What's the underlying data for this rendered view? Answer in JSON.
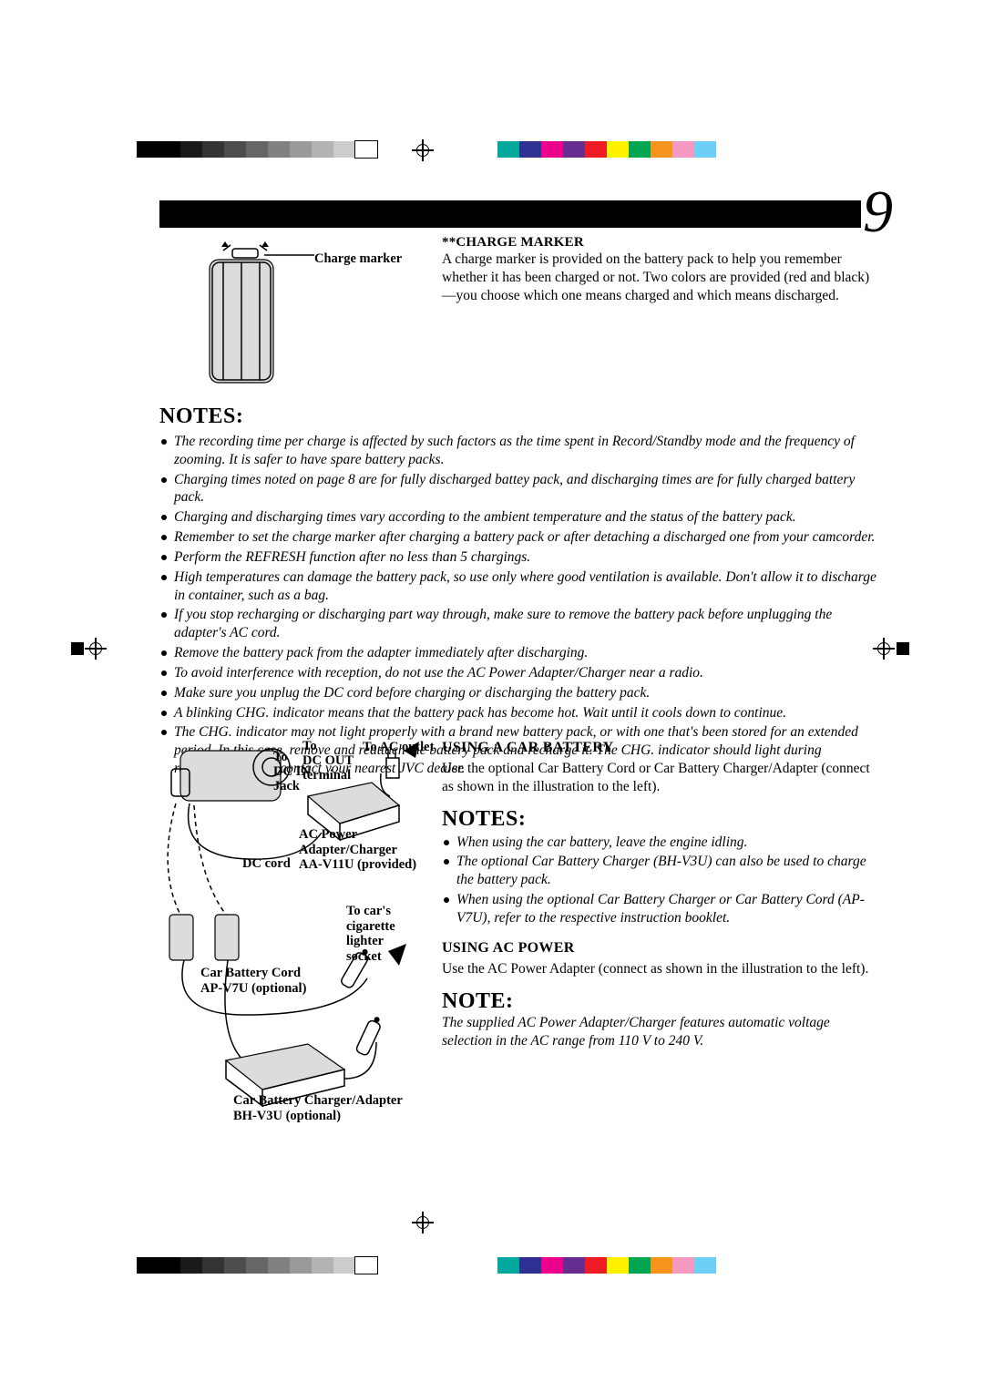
{
  "page_number": "9",
  "colorbars": {
    "grayscale": [
      "#000000",
      "#000000",
      "#1a1a1a",
      "#333333",
      "#4d4d4d",
      "#666666",
      "#808080",
      "#999999",
      "#b3b3b3",
      "#cccccc",
      "#ffffff"
    ],
    "process": [
      "#00a99d",
      "#2e3192",
      "#ec008c",
      "#662d91",
      "#ed1c24",
      "#fff200",
      "#00a651",
      "#f7941d",
      "#f49ac1",
      "#6dcff6"
    ]
  },
  "charge_marker": {
    "heading": "**CHARGE MARKER",
    "label": "Charge marker",
    "body": "A charge marker is provided on the battery pack to help you remember whether it has been charged or not. Two colors are provided (red and black)—you choose which one means charged and which means discharged."
  },
  "notes_main": {
    "heading": "NOTES:",
    "items": [
      "The recording time per charge is affected by such factors as the time spent in Record/Standby mode and the frequency of zooming. It is safer to have spare battery packs.",
      "Charging times noted on page 8 are for fully discharged battey pack, and discharging times are for fully charged battery pack.",
      "Charging and discharging times vary according to the ambient temperature and the status of the battery pack.",
      "Remember to set the charge marker after charging a battery pack or after detaching a discharged one from your camcorder.",
      "Perform the REFRESH function after no less than 5 chargings.",
      "High temperatures can damage the battery pack, so use only where good ventilation is available. Don't allow it to discharge in container, such as a bag.",
      "If you stop recharging or discharging part way through, make sure to remove the battery pack before unplugging the adapter's AC cord.",
      "Remove the battery pack from the adapter immediately after discharging.",
      "To avoid interference with reception, do not use the AC Power Adapter/Charger near a radio.",
      "Make sure you unplug the DC cord before charging or discharging the battery pack.",
      "A blinking CHG. indicator means that the battery pack has become hot. Wait until it cools down to continue.",
      "The CHG. indicator may not light properly with a brand new battery pack, or with one that's been stored for an extended period. In this case, remove and reattach the battery pack and recharge it. The CHG. indicator should light during recharging. If not, contact your nearest JVC dealer."
    ]
  },
  "car_battery": {
    "heading": "USING A CAR BATTERY",
    "body": "Use the optional Car Battery Cord or Car Battery Charger/Adapter (connect as shown in the illustration to the left).",
    "notes_heading": "NOTES:",
    "notes": [
      "When using the car battery, leave the engine idling.",
      "The optional Car Battery Charger (BH-V3U) can also be used to charge the battery pack.",
      "When using the optional Car Battery Charger or Car Battery Cord (AP-V7U), refer to the respective instruction booklet."
    ]
  },
  "ac_power": {
    "heading": "USING AC POWER",
    "body": "Use the AC Power Adapter (connect as shown in the illustration to the left).",
    "note_heading": "NOTE:",
    "note_body": "The supplied AC Power Adapter/Charger features automatic voltage selection in the AC range from 110 V to 240 V."
  },
  "diagram_labels": {
    "to_dc_in": "To\nDC IN\nJack",
    "to_dc_out": "To\nDC OUT\nterminal",
    "to_ac_outlet": "To AC outlet",
    "ac_adapter": "AC Power\nAdapter/Charger\nAA-V11U (provided)",
    "dc_cord": "DC cord",
    "to_car_socket": "To car's\ncigarette\nlighter\nsocket",
    "car_cord": "Car Battery Cord\nAP-V7U (optional)",
    "car_charger": "Car Battery Charger/Adapter\nBH-V3U (optional)"
  }
}
